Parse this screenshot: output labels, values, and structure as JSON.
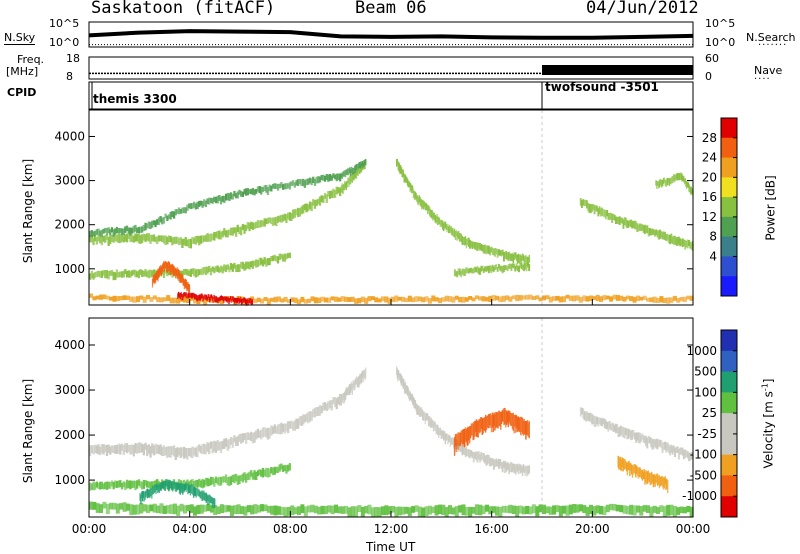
{
  "header": {
    "station": "Saskatoon (fitACF)",
    "beam": "Beam 06",
    "date": "04/Jun/2012"
  },
  "panels": {
    "nsky_label": "N.Sky",
    "nsky_ticks": [
      "10^5",
      "10^0"
    ],
    "nsearch_label": "N.Search",
    "nsearch_ticks": [
      "10^5",
      "10^0"
    ],
    "freq_label": "Freq.",
    "freq_unit": "[MHz]",
    "freq_ticks": [
      "18",
      "8"
    ],
    "nave_label": "Nave",
    "nave_ticks": [
      "60",
      "0"
    ],
    "cpid_label": "CPID",
    "cpid_entries": [
      "themis 3300",
      "twofsound -3501"
    ]
  },
  "power_colorbar": {
    "label": "Power [dB]",
    "ticks": [
      "28",
      "24",
      "20",
      "16",
      "12",
      "8",
      "4"
    ],
    "colors": [
      "#1a1aff",
      "#2d4fd0",
      "#3a7f8a",
      "#4fa050",
      "#88c040",
      "#f0e020",
      "#f0a020",
      "#f06010",
      "#e00000"
    ]
  },
  "velocity_colorbar": {
    "label": "Velocity [m s",
    "label_sup": "-1",
    "label_end": "]",
    "ticks": [
      "1000",
      "500",
      "100",
      "25",
      "-25",
      "-100",
      "-500",
      "-1000"
    ],
    "colors": [
      "#2030b0",
      "#3060c0",
      "#20a070",
      "#60c040",
      "#c8c8c0",
      "#c8c8c0",
      "#f0a020",
      "#f06010",
      "#e00000"
    ]
  },
  "chart_data": [
    {
      "type": "line",
      "title": "N.Sky / N.Search",
      "x": [
        0,
        2,
        4,
        6,
        8,
        10,
        12,
        14,
        16,
        18,
        20,
        22,
        24
      ],
      "series": [
        {
          "name": "N.Sky",
          "values": [
            2.2,
            2.8,
            3.1,
            3.0,
            2.9,
            2.0,
            1.9,
            2.0,
            1.8,
            1.7,
            1.7,
            1.9,
            2.1
          ]
        },
        {
          "name": "N.Search",
          "values": [
            0.3,
            0.3,
            0.3,
            0.3,
            0.3,
            0.3,
            0.3,
            0.3,
            0.3,
            0.3,
            0.3,
            0.3,
            0.3
          ]
        }
      ],
      "ylim": [
        0,
        5
      ],
      "log_scale": true
    },
    {
      "type": "line",
      "title": "Freq. / Nave",
      "x": [
        0,
        4,
        8,
        12,
        16,
        18,
        20,
        24
      ],
      "series": [
        {
          "name": "Freq.",
          "values": [
            10.3,
            10.3,
            10.3,
            10.3,
            10.3,
            10.3,
            10.3,
            10.3
          ]
        },
        {
          "name": "Nave",
          "values": [
            0,
            0,
            0,
            0,
            0,
            20,
            20,
            20
          ]
        }
      ],
      "xlim": [
        0,
        24
      ]
    },
    {
      "type": "heatmap",
      "quantity": "Power [dB]",
      "xlabel": "Time UT",
      "ylabel": "Slant Range [km]",
      "xticks": [
        "00:00",
        "04:00",
        "08:00",
        "12:00",
        "16:00",
        "20:00",
        "00:00"
      ],
      "yticks": [
        "1000",
        "2000",
        "3000",
        "4000"
      ],
      "xlim": [
        0,
        24
      ],
      "ylim": [
        180,
        4600
      ],
      "bands": [
        {
          "t": [
            0,
            2,
            4,
            6,
            8,
            10,
            11
          ],
          "r": [
            1650,
            1700,
            1600,
            1900,
            2200,
            2800,
            3400
          ],
          "width": 180,
          "value": 12
        },
        {
          "t": [
            0,
            2,
            4,
            6,
            8,
            10,
            11
          ],
          "r": [
            1800,
            1900,
            2400,
            2700,
            2900,
            3100,
            3400
          ],
          "width": 150,
          "value": 10
        },
        {
          "t": [
            0,
            2,
            4,
            6,
            8
          ],
          "r": [
            850,
            900,
            900,
            1050,
            1300
          ],
          "width": 160,
          "value": 14
        },
        {
          "t": [
            2.5,
            3.0,
            3.5,
            4.0
          ],
          "r": [
            700,
            1100,
            900,
            500
          ],
          "width": 200,
          "value": 26
        },
        {
          "t": [
            12.2,
            13,
            14,
            15,
            16.5,
            17.5
          ],
          "r": [
            3400,
            2600,
            2000,
            1600,
            1300,
            1200
          ],
          "width": 180,
          "value": 12
        },
        {
          "t": [
            14.5,
            16,
            17.5
          ],
          "r": [
            900,
            1000,
            1050
          ],
          "width": 140,
          "value": 14
        },
        {
          "t": [
            19.5,
            21,
            22.5,
            24
          ],
          "r": [
            2500,
            2100,
            1800,
            1500
          ],
          "width": 180,
          "value": 14
        },
        {
          "t": [
            22.5,
            23.5,
            24
          ],
          "r": [
            2900,
            3100,
            2700
          ],
          "width": 150,
          "value": 12
        },
        {
          "t": [
            0,
            4,
            8,
            12,
            16,
            20,
            24
          ],
          "r": [
            350,
            300,
            280,
            300,
            320,
            330,
            300
          ],
          "width": 120,
          "value": 20
        },
        {
          "t": [
            3.5,
            4.5,
            5.5,
            6.5
          ],
          "r": [
            400,
            350,
            300,
            250
          ],
          "width": 120,
          "value": 28
        }
      ]
    },
    {
      "type": "heatmap",
      "quantity": "Velocity [m s-1]",
      "xlabel": "Time UT",
      "ylabel": "Slant Range [km]",
      "xticks": [
        "00:00",
        "04:00",
        "08:00",
        "12:00",
        "16:00",
        "20:00",
        "00:00"
      ],
      "yticks": [
        "1000",
        "2000",
        "3000",
        "4000"
      ],
      "xlim": [
        0,
        24
      ],
      "ylim": [
        180,
        4600
      ],
      "bands": [
        {
          "t": [
            0,
            2,
            4,
            6,
            8,
            10,
            11
          ],
          "r": [
            1650,
            1700,
            1600,
            1900,
            2200,
            2800,
            3400
          ],
          "width": 220,
          "value": 0
        },
        {
          "t": [
            0,
            2,
            4,
            6,
            8
          ],
          "r": [
            850,
            900,
            900,
            1050,
            1300
          ],
          "width": 180,
          "value": 50
        },
        {
          "t": [
            12.2,
            13,
            14,
            15,
            16.5,
            17.5
          ],
          "r": [
            3400,
            2600,
            2000,
            1600,
            1300,
            1200
          ],
          "width": 200,
          "value": 0
        },
        {
          "t": [
            14.5,
            15.5,
            16.5,
            17.5
          ],
          "r": [
            1800,
            2200,
            2400,
            2100
          ],
          "width": 350,
          "value": -600
        },
        {
          "t": [
            21,
            22,
            23
          ],
          "r": [
            1400,
            1100,
            900
          ],
          "width": 250,
          "value": -150
        },
        {
          "t": [
            19.5,
            21,
            22.5,
            24
          ],
          "r": [
            2500,
            2100,
            1800,
            1500
          ],
          "width": 200,
          "value": 0
        },
        {
          "t": [
            0,
            4,
            8,
            12,
            16,
            20,
            24
          ],
          "r": [
            400,
            350,
            330,
            320,
            330,
            340,
            320
          ],
          "width": 200,
          "value": 80
        },
        {
          "t": [
            2,
            3,
            4,
            5
          ],
          "r": [
            600,
            900,
            800,
            500
          ],
          "width": 200,
          "value": 150
        }
      ]
    }
  ],
  "axis": {
    "ylabel": "Slant Range [km]",
    "xlabel": "Time UT"
  }
}
